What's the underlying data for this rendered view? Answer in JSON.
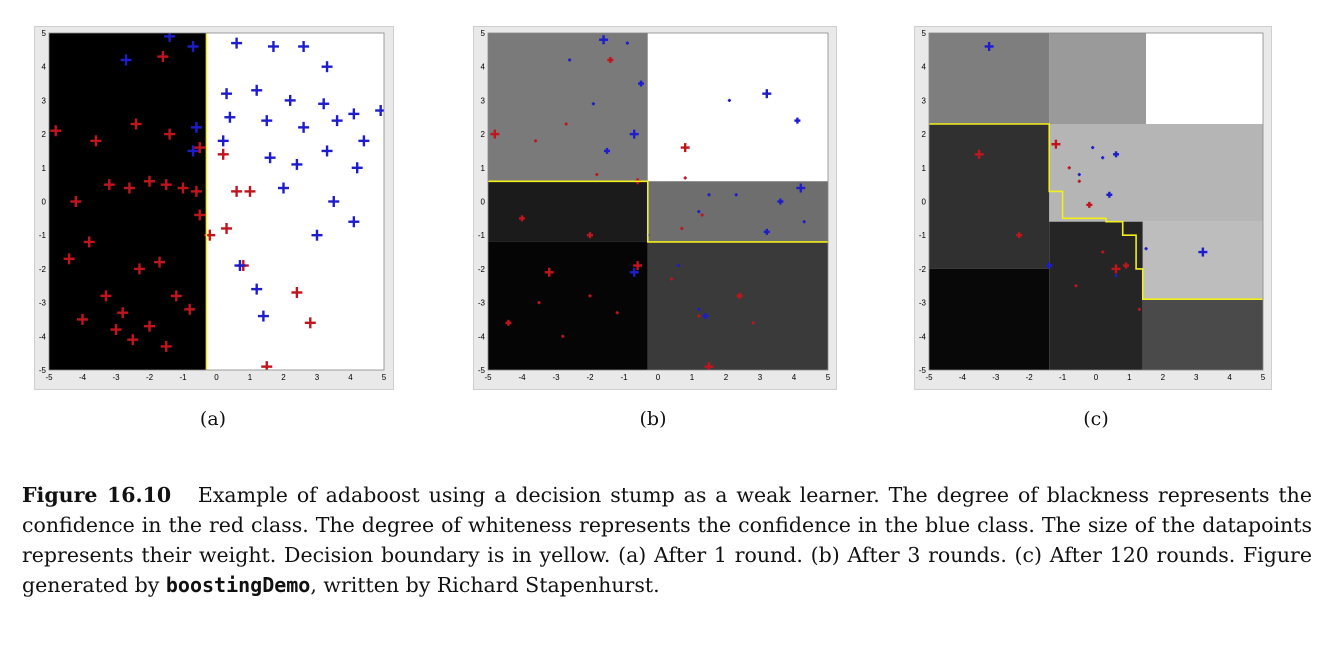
{
  "figure": {
    "panels": [
      {
        "label": "(a)",
        "rounds": 1
      },
      {
        "label": "(b)",
        "rounds": 3
      },
      {
        "label": "(c)",
        "rounds": 120
      }
    ],
    "axis": {
      "x_ticks": [
        "-5",
        "-4",
        "-3",
        "-2",
        "-1",
        "0",
        "1",
        "2",
        "3",
        "4",
        "5"
      ],
      "y_ticks": [
        "5",
        "4",
        "3",
        "2",
        "1",
        "0",
        "-1",
        "-2",
        "-3",
        "-4",
        "-5"
      ],
      "xlim": [
        -5,
        5
      ],
      "ylim": [
        -5,
        5
      ]
    },
    "colors": {
      "red_class": "#c0151d",
      "blue_class": "#1d1dcc",
      "boundary": "#f2ef1a"
    }
  },
  "caption": {
    "figure_number": "Figure 16.10",
    "text_1": "Example of adaboost using a decision stump as a weak learner. The degree of blackness represents the confidence in the red class. The degree of whiteness represents the confidence in the blue class. The size of the datapoints represents their weight. Decision boundary is in yellow. (a) After 1 round. (b) After 3 rounds. (c) After 120 rounds. Figure generated by",
    "code": "boostingDemo",
    "text_2": ", written by Richard Stapenhurst."
  },
  "chart_data": [
    {
      "type": "scatter",
      "title": "",
      "xlabel": "",
      "ylabel": "",
      "xlim": [
        -5,
        5
      ],
      "ylim": [
        -5,
        5
      ],
      "rounds": 1,
      "boundary": [
        [
          -0.3,
          -5
        ],
        [
          -0.3,
          5
        ]
      ],
      "regions": [
        {
          "x": [
            -5,
            -0.3
          ],
          "y": [
            -5,
            5
          ],
          "shade": "#000000"
        },
        {
          "x": [
            -0.3,
            5
          ],
          "y": [
            -5,
            5
          ],
          "shade": "#ffffff"
        }
      ],
      "series": [
        {
          "values": [
            [
              -4.8,
              2.1
            ],
            [
              -3.6,
              1.8
            ],
            [
              -2.4,
              2.3
            ],
            [
              -1.4,
              2.0
            ],
            [
              -4.2,
              0.0
            ],
            [
              -3.2,
              0.5
            ],
            [
              -2.6,
              0.4
            ],
            [
              -2.0,
              0.6
            ],
            [
              -1.5,
              0.5
            ],
            [
              -1.0,
              0.4
            ],
            [
              -0.6,
              0.3
            ],
            [
              -4.4,
              -1.7
            ],
            [
              -3.8,
              -1.2
            ],
            [
              -3.3,
              -2.8
            ],
            [
              -2.8,
              -3.3
            ],
            [
              -2.3,
              -2.0
            ],
            [
              -2.0,
              -3.7
            ],
            [
              -1.7,
              -1.8
            ],
            [
              -1.2,
              -2.8
            ],
            [
              -0.8,
              -3.2
            ],
            [
              -4.0,
              -3.5
            ],
            [
              -3.0,
              -3.8
            ],
            [
              -2.5,
              -4.1
            ],
            [
              -1.5,
              -4.3
            ],
            [
              -0.5,
              -0.4
            ],
            [
              -0.2,
              -1.0
            ],
            [
              0.3,
              -0.8
            ],
            [
              0.8,
              -1.9
            ],
            [
              2.4,
              -2.7
            ],
            [
              2.8,
              -3.6
            ],
            [
              1.5,
              -4.9
            ],
            [
              -1.6,
              4.3
            ],
            [
              -0.5,
              1.6
            ],
            [
              0.2,
              1.4
            ],
            [
              0.6,
              0.3
            ],
            [
              1.0,
              0.3
            ]
          ]
        },
        {
          "values": [
            [
              -2.7,
              4.2
            ],
            [
              -1.4,
              4.9
            ],
            [
              -0.7,
              4.6
            ],
            [
              0.6,
              4.7
            ],
            [
              1.7,
              4.6
            ],
            [
              2.6,
              4.6
            ],
            [
              3.3,
              4.0
            ],
            [
              0.3,
              3.2
            ],
            [
              1.2,
              3.3
            ],
            [
              2.2,
              3.0
            ],
            [
              3.2,
              2.9
            ],
            [
              4.1,
              2.6
            ],
            [
              4.9,
              2.7
            ],
            [
              0.4,
              2.5
            ],
            [
              1.5,
              2.4
            ],
            [
              2.6,
              2.2
            ],
            [
              3.6,
              2.4
            ],
            [
              4.4,
              1.8
            ],
            [
              0.2,
              1.8
            ],
            [
              1.6,
              1.3
            ],
            [
              2.4,
              1.1
            ],
            [
              3.3,
              1.5
            ],
            [
              4.2,
              1.0
            ],
            [
              2.0,
              0.4
            ],
            [
              3.5,
              0.0
            ],
            [
              4.1,
              -0.6
            ],
            [
              3.0,
              -1.0
            ],
            [
              0.7,
              -1.9
            ],
            [
              1.2,
              -2.6
            ],
            [
              1.4,
              -3.4
            ],
            [
              -0.6,
              2.2
            ],
            [
              -0.7,
              1.5
            ]
          ]
        }
      ]
    },
    {
      "type": "scatter",
      "title": "",
      "xlabel": "",
      "ylabel": "",
      "xlim": [
        -5,
        5
      ],
      "ylim": [
        -5,
        5
      ],
      "rounds": 3,
      "boundary": [
        [
          -5,
          0.6
        ],
        [
          -0.3,
          0.6
        ],
        [
          -0.3,
          -1.2
        ],
        [
          5,
          -1.2
        ]
      ],
      "regions": [
        {
          "x": [
            -5,
            -0.3
          ],
          "y": [
            0.6,
            5
          ],
          "shade": "#7a7a7a"
        },
        {
          "x": [
            -0.3,
            5
          ],
          "y": [
            0.6,
            5
          ],
          "shade": "#ffffff"
        },
        {
          "x": [
            -5,
            -0.3
          ],
          "y": [
            -1.2,
            0.6
          ],
          "shade": "#1b1b1b"
        },
        {
          "x": [
            -0.3,
            5
          ],
          "y": [
            -1.2,
            0.6
          ],
          "shade": "#6e6e6e"
        },
        {
          "x": [
            -5,
            -0.3
          ],
          "y": [
            -5,
            -1.2
          ],
          "shade": "#050505"
        },
        {
          "x": [
            -0.3,
            5
          ],
          "y": [
            -5,
            -1.2
          ],
          "shade": "#3a3a3a"
        }
      ],
      "series": [
        {
          "values": [
            [
              -4.8,
              2.0
            ],
            [
              -3.6,
              1.8
            ],
            [
              -2.7,
              2.3
            ],
            [
              -1.4,
              4.2
            ],
            [
              -1.8,
              0.8
            ],
            [
              0.8,
              1.6
            ],
            [
              -0.6,
              0.6
            ],
            [
              0.7,
              -0.8
            ],
            [
              1.3,
              -0.4
            ],
            [
              -4.0,
              -0.5
            ],
            [
              -3.2,
              -2.1
            ],
            [
              -2.0,
              -2.8
            ],
            [
              -4.4,
              -3.6
            ],
            [
              -2.8,
              -4.0
            ],
            [
              -1.2,
              -3.3
            ],
            [
              -0.6,
              -1.9
            ],
            [
              0.4,
              -2.3
            ],
            [
              1.2,
              -3.4
            ],
            [
              2.4,
              -2.8
            ],
            [
              2.8,
              -3.6
            ],
            [
              1.5,
              -4.9
            ],
            [
              -2.0,
              -1.0
            ],
            [
              -3.5,
              -3.0
            ],
            [
              0.8,
              0.7
            ]
          ]
        },
        {
          "values": [
            [
              -1.6,
              4.8
            ],
            [
              -0.9,
              4.7
            ],
            [
              -2.6,
              4.2
            ],
            [
              -0.5,
              3.5
            ],
            [
              -1.9,
              2.9
            ],
            [
              -0.7,
              2.0
            ],
            [
              -1.5,
              1.5
            ],
            [
              1.5,
              0.2
            ],
            [
              2.3,
              0.2
            ],
            [
              3.2,
              -0.9
            ],
            [
              4.2,
              0.4
            ],
            [
              4.3,
              -0.6
            ],
            [
              3.6,
              0.0
            ],
            [
              1.2,
              -0.3
            ],
            [
              -0.3,
              -1.0
            ],
            [
              -0.7,
              -2.1
            ],
            [
              0.6,
              -1.9
            ],
            [
              1.2,
              -3.2
            ],
            [
              1.4,
              -3.4
            ],
            [
              2.1,
              3.0
            ],
            [
              3.2,
              3.2
            ],
            [
              4.1,
              2.4
            ]
          ]
        }
      ]
    },
    {
      "type": "scatter",
      "title": "",
      "xlabel": "",
      "ylabel": "",
      "xlim": [
        -5,
        5
      ],
      "ylim": [
        -5,
        5
      ],
      "rounds": 120,
      "boundary": [
        [
          -5,
          2.3
        ],
        [
          -1.4,
          2.3
        ],
        [
          -1.4,
          0.3
        ],
        [
          -1.0,
          0.3
        ],
        [
          -1.0,
          -0.5
        ],
        [
          0.3,
          -0.5
        ],
        [
          0.3,
          -0.6
        ],
        [
          0.8,
          -0.6
        ],
        [
          0.8,
          -1.0
        ],
        [
          1.2,
          -1.0
        ],
        [
          1.2,
          -2.0
        ],
        [
          1.4,
          -2.0
        ],
        [
          1.4,
          -2.9
        ],
        [
          5,
          -2.9
        ]
      ],
      "regions": [
        {
          "x": [
            -5,
            -1.4
          ],
          "y": [
            2.3,
            5
          ],
          "shade": "#7e7e7e"
        },
        {
          "x": [
            -1.4,
            1.5
          ],
          "y": [
            2.3,
            5
          ],
          "shade": "#9a9a9a"
        },
        {
          "x": [
            1.5,
            5
          ],
          "y": [
            2.3,
            5
          ],
          "shade": "#ffffff"
        },
        {
          "x": [
            -5,
            -1.4
          ],
          "y": [
            -2.0,
            2.3
          ],
          "shade": "#303030"
        },
        {
          "x": [
            -1.4,
            5
          ],
          "y": [
            -0.6,
            2.3
          ],
          "shade": "#b5b5b5"
        },
        {
          "x": [
            -5,
            -1.4
          ],
          "y": [
            -5,
            -2.0
          ],
          "shade": "#080808"
        },
        {
          "x": [
            -1.4,
            1.4
          ],
          "y": [
            -5,
            -0.6
          ],
          "shade": "#252525"
        },
        {
          "x": [
            1.4,
            5
          ],
          "y": [
            -2.9,
            -0.6
          ],
          "shade": "#bdbdbd"
        },
        {
          "x": [
            1.4,
            5
          ],
          "y": [
            -5,
            -2.9
          ],
          "shade": "#4a4a4a"
        }
      ],
      "series": [
        {
          "values": [
            [
              -1.2,
              1.7
            ],
            [
              -0.8,
              1.0
            ],
            [
              -0.5,
              0.6
            ],
            [
              -0.2,
              -0.1
            ],
            [
              0.2,
              -1.5
            ],
            [
              0.6,
              -2.0
            ],
            [
              0.9,
              -1.9
            ],
            [
              1.3,
              -3.2
            ],
            [
              -0.6,
              -2.5
            ],
            [
              -2.3,
              -1.0
            ],
            [
              -3.5,
              1.4
            ]
          ]
        },
        {
          "values": [
            [
              -3.2,
              4.6
            ],
            [
              -0.1,
              1.6
            ],
            [
              0.2,
              1.3
            ],
            [
              0.6,
              1.4
            ],
            [
              1.5,
              -1.4
            ],
            [
              3.2,
              -1.5
            ],
            [
              -1.4,
              -1.9
            ],
            [
              0.6,
              -2.2
            ],
            [
              -0.5,
              0.8
            ],
            [
              0.4,
              0.2
            ]
          ]
        }
      ]
    }
  ]
}
